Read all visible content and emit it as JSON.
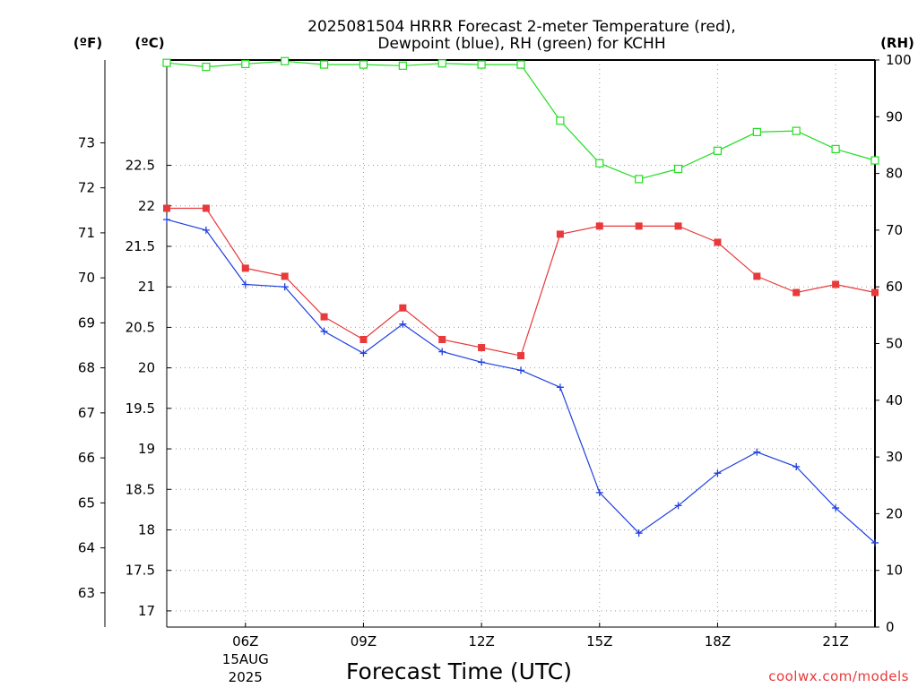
{
  "chart_data": {
    "type": "line",
    "title": "2025081504 HRRR Forecast 2-meter Temperature (red),",
    "subtitle": "Dewpoint (blue), RH (green) for KCHH",
    "xlabel": "Forecast Time (UTC)",
    "credit": "coolwx.com/models",
    "units": {
      "fahrenheit": "(ºF)",
      "celsius": "(ºC)",
      "rh": "(RH)"
    },
    "x_hours": [
      4,
      5,
      6,
      7,
      8,
      9,
      10,
      11,
      12,
      13,
      14,
      15,
      16,
      17,
      18,
      19,
      20,
      21,
      22
    ],
    "x_ticks": [
      {
        "hour": 6,
        "label": "06Z",
        "sub1": "15AUG",
        "sub2": "2025"
      },
      {
        "hour": 9,
        "label": "09Z",
        "sub1": "",
        "sub2": ""
      },
      {
        "hour": 12,
        "label": "12Z",
        "sub1": "",
        "sub2": ""
      },
      {
        "hour": 15,
        "label": "15Z",
        "sub1": "",
        "sub2": ""
      },
      {
        "hour": 18,
        "label": "18Z",
        "sub1": "",
        "sub2": ""
      },
      {
        "hour": 21,
        "label": "21Z",
        "sub1": "",
        "sub2": ""
      }
    ],
    "xlim": [
      4,
      22
    ],
    "ylim_celsius": [
      16.8,
      23.8
    ],
    "ylim_rh": [
      0,
      100
    ],
    "celsius_ticks": [
      "17",
      "17.5",
      "18",
      "18.5",
      "19",
      "19.5",
      "20",
      "20.5",
      "21",
      "21.5",
      "22",
      "22.5"
    ],
    "fahrenheit_ticks": [
      "63",
      "64",
      "65",
      "66",
      "67",
      "68",
      "69",
      "70",
      "71",
      "72",
      "73"
    ],
    "rh_ticks": [
      "0",
      "10",
      "20",
      "30",
      "40",
      "50",
      "60",
      "70",
      "80",
      "90",
      "100"
    ],
    "grid": true,
    "colors": {
      "temperature": "#e8393b",
      "dewpoint": "#2040e0",
      "rh": "#22dd22"
    },
    "series": [
      {
        "name": "Temperature",
        "axis": "celsius",
        "marker": "filled-square",
        "values": [
          21.97,
          21.97,
          21.23,
          21.13,
          20.63,
          20.35,
          20.74,
          20.35,
          20.25,
          20.15,
          21.65,
          21.75,
          21.75,
          21.75,
          21.55,
          21.13,
          20.93,
          21.03,
          20.93
        ]
      },
      {
        "name": "Dewpoint",
        "axis": "celsius",
        "marker": "plus",
        "values": [
          21.83,
          21.7,
          21.03,
          21.0,
          20.45,
          20.18,
          20.54,
          20.2,
          20.07,
          19.97,
          19.76,
          18.46,
          17.96,
          18.3,
          18.7,
          18.96,
          18.78,
          18.27,
          17.84
        ]
      },
      {
        "name": "RH",
        "axis": "rh",
        "marker": "open-square",
        "values": [
          99.5,
          98.8,
          99.3,
          99.8,
          99.2,
          99.2,
          99.0,
          99.4,
          99.2,
          99.2,
          89.3,
          81.8,
          79.0,
          80.8,
          84.0,
          87.3,
          87.5,
          84.3,
          82.3
        ]
      }
    ]
  }
}
